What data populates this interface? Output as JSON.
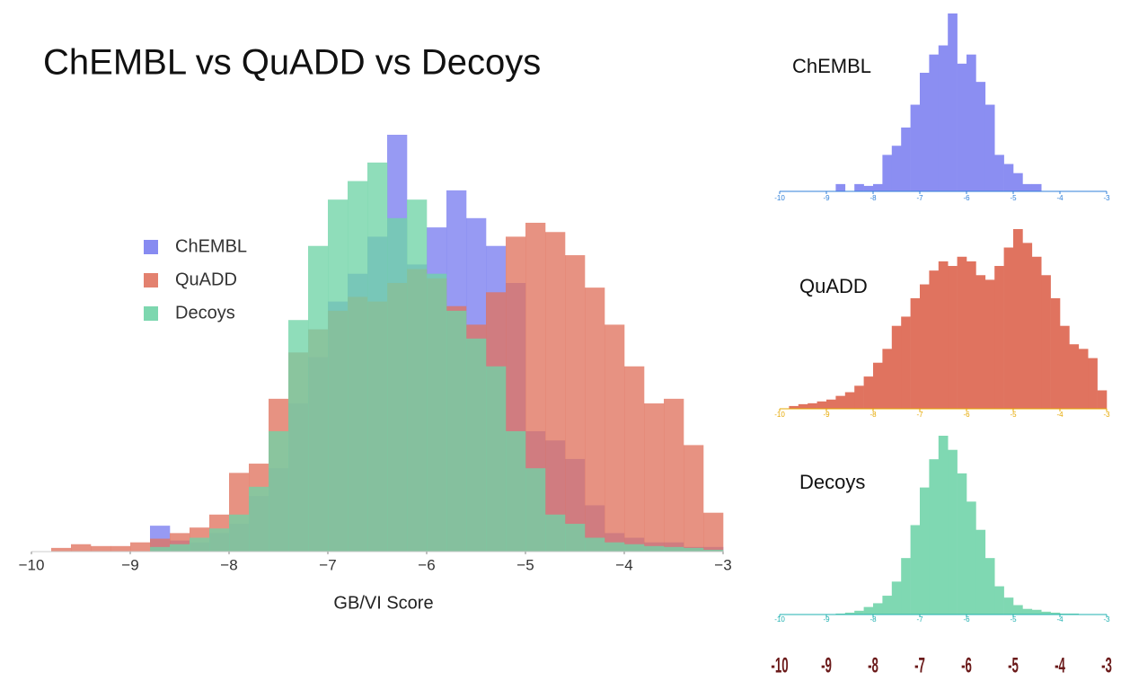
{
  "chart_data": [
    {
      "type": "histogram",
      "title": "ChEMBL vs QuADD vs Decoys",
      "xlabel": "GB/VI Score",
      "bins": [
        -10,
        -9.8,
        -9.6,
        -9.4,
        -9.2,
        -9,
        -8.8,
        -8.6,
        -8.4,
        -8.2,
        -8,
        -7.8,
        -7.6,
        -7.4,
        -7.2,
        -7,
        -6.8,
        -6.6,
        -6.4,
        -6.2,
        -6,
        -5.8,
        -5.6,
        -5.4,
        -5.2,
        -5,
        -4.8,
        -4.6,
        -4.4,
        -4.2,
        -4,
        -3.8,
        -3.6,
        -3.4,
        -3.2,
        -3
      ],
      "xlim": [
        -10,
        -3
      ],
      "xticks": [
        {
          "value": -10,
          "label": "−10"
        },
        {
          "value": -9,
          "label": "−9"
        },
        {
          "value": -8,
          "label": "−8"
        },
        {
          "value": -7,
          "label": "−7"
        },
        {
          "value": -6,
          "label": "−6"
        },
        {
          "value": -5,
          "label": "−5"
        },
        {
          "value": -4,
          "label": "−4"
        },
        {
          "value": -3,
          "label": "−3"
        }
      ],
      "series": [
        {
          "name": "ChEMBL",
          "color": "#7a7ef0",
          "values": [
            0,
            0,
            0,
            0,
            0,
            0,
            28,
            12,
            10,
            20,
            30,
            60,
            90,
            160,
            210,
            270,
            300,
            340,
            450,
            310,
            350,
            390,
            360,
            330,
            290,
            130,
            120,
            100,
            50,
            20,
            15,
            10,
            10,
            5,
            5
          ]
        },
        {
          "name": "QuADD",
          "color": "#e0735f",
          "values": [
            0,
            4,
            8,
            6,
            6,
            10,
            14,
            20,
            26,
            40,
            85,
            95,
            165,
            215,
            240,
            260,
            275,
            270,
            290,
            305,
            295,
            265,
            245,
            280,
            340,
            355,
            345,
            320,
            285,
            245,
            200,
            160,
            165,
            115,
            42
          ]
        },
        {
          "name": "Decoys",
          "color": "#6fd3a6",
          "values": [
            0,
            0,
            0,
            0,
            0,
            0,
            5,
            8,
            15,
            25,
            40,
            70,
            130,
            250,
            330,
            380,
            400,
            420,
            360,
            380,
            300,
            260,
            230,
            200,
            130,
            90,
            40,
            30,
            15,
            10,
            8,
            6,
            5,
            4,
            2
          ]
        }
      ]
    },
    {
      "type": "histogram",
      "title": "ChEMBL",
      "tick_color": "#2f7fd8",
      "bins": [
        -10,
        -9.8,
        -9.6,
        -9.4,
        -9.2,
        -9,
        -8.8,
        -8.6,
        -8.4,
        -8.2,
        -8,
        -7.8,
        -7.6,
        -7.4,
        -7.2,
        -7,
        -6.8,
        -6.6,
        -6.4,
        -6.2,
        -6,
        -5.8,
        -5.6,
        -5.4,
        -5.2,
        -5,
        -4.8,
        -4.6,
        -4.4,
        -4.2,
        -4,
        -3.8,
        -3.6,
        -3.4,
        -3.2,
        -3
      ],
      "xlim": [
        -10,
        -3
      ],
      "xticks": [
        -10,
        -9,
        -8,
        -7,
        -6,
        -5,
        -4,
        -3
      ],
      "series": [
        {
          "name": "ChEMBL",
          "color": "#8b8ef2",
          "values": [
            0,
            0,
            0,
            0,
            0,
            0,
            8,
            0,
            8,
            6,
            8,
            40,
            50,
            70,
            95,
            130,
            150,
            160,
            195,
            140,
            150,
            120,
            95,
            40,
            30,
            20,
            8,
            8,
            0,
            0,
            0,
            0,
            0,
            0,
            0
          ]
        }
      ]
    },
    {
      "type": "histogram",
      "title": "QuADD",
      "tick_color": "#e6a800",
      "bins": [
        -10,
        -9.8,
        -9.6,
        -9.4,
        -9.2,
        -9,
        -8.8,
        -8.6,
        -8.4,
        -8.2,
        -8,
        -7.8,
        -7.6,
        -7.4,
        -7.2,
        -7,
        -6.8,
        -6.6,
        -6.4,
        -6.2,
        -6,
        -5.8,
        -5.6,
        -5.4,
        -5.2,
        -5,
        -4.8,
        -4.6,
        -4.4,
        -4.2,
        -4,
        -3.8,
        -3.6,
        -3.4,
        -3.2,
        -3
      ],
      "xlim": [
        -10,
        -3
      ],
      "xticks": [
        -10,
        -9,
        -8,
        -7,
        -6,
        -5,
        -4,
        -3
      ],
      "series": [
        {
          "name": "QuADD",
          "color": "#e0735f",
          "values": [
            0,
            3,
            5,
            6,
            8,
            10,
            14,
            18,
            25,
            35,
            50,
            65,
            90,
            100,
            120,
            135,
            150,
            160,
            155,
            165,
            160,
            145,
            140,
            155,
            175,
            195,
            180,
            165,
            145,
            120,
            90,
            70,
            65,
            55,
            20
          ]
        }
      ]
    },
    {
      "type": "histogram",
      "title": "Decoys",
      "tick_color": "#1fb0b0",
      "bins": [
        -10,
        -9.8,
        -9.6,
        -9.4,
        -9.2,
        -9,
        -8.8,
        -8.6,
        -8.4,
        -8.2,
        -8,
        -7.8,
        -7.6,
        -7.4,
        -7.2,
        -7,
        -6.8,
        -6.6,
        -6.4,
        -6.2,
        -6,
        -5.8,
        -5.6,
        -5.4,
        -5.2,
        -5,
        -4.8,
        -4.6,
        -4.4,
        -4.2,
        -4,
        -3.8,
        -3.6,
        -3.4,
        -3.2,
        -3
      ],
      "xlim": [
        -10,
        -3
      ],
      "xticks": [
        -10,
        -9,
        -8,
        -7,
        -6,
        -5,
        -4,
        -3
      ],
      "series": [
        {
          "name": "Decoys",
          "color": "#7fd8b2",
          "values": [
            0,
            0,
            0,
            0,
            0,
            0,
            1,
            2,
            4,
            8,
            12,
            20,
            35,
            60,
            95,
            135,
            165,
            190,
            175,
            150,
            120,
            90,
            60,
            30,
            18,
            10,
            6,
            5,
            3,
            2,
            1,
            1,
            0,
            0,
            0
          ]
        }
      ]
    }
  ],
  "scale_labels": [
    -10,
    -9,
    -8,
    -7,
    -6,
    -5,
    -4,
    -3
  ]
}
